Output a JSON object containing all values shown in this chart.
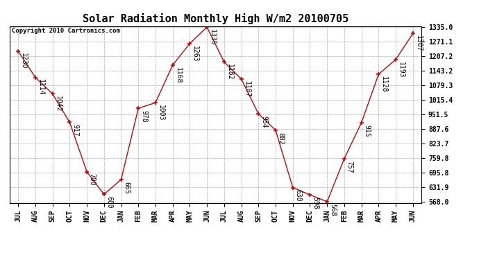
{
  "title": "Solar Radiation Monthly High W/m2 20100705",
  "copyright": "Copyright 2010 Cartronics.com",
  "months": [
    "JUL",
    "AUG",
    "SEP",
    "OCT",
    "NOV",
    "DEC",
    "JAN",
    "FEB",
    "MAR",
    "APR",
    "MAY",
    "JUN",
    "JUL",
    "AUG",
    "SEP",
    "OCT",
    "NOV",
    "DEC",
    "JAN",
    "FEB",
    "MAR",
    "APR",
    "MAY",
    "JUN"
  ],
  "values": [
    1230,
    1114,
    1042,
    917,
    700,
    600,
    665,
    978,
    1003,
    1168,
    1263,
    1335,
    1182,
    1107,
    954,
    882,
    630,
    598,
    568,
    757,
    915,
    1128,
    1193,
    1307
  ],
  "line_color": "#cc0000",
  "marker_color": "#cc0000",
  "grid_color": "#aaaaaa",
  "bg_color": "#ffffff",
  "label_color": "#000000",
  "title_fontsize": 11,
  "tick_label_fontsize": 7,
  "data_label_fontsize": 7,
  "copyright_fontsize": 6.5,
  "ylim_min": 568.0,
  "ylim_max": 1335.0,
  "yticks": [
    568.0,
    631.9,
    695.8,
    759.8,
    823.7,
    887.6,
    951.5,
    1015.4,
    1079.3,
    1143.2,
    1207.2,
    1271.1,
    1335.0
  ]
}
